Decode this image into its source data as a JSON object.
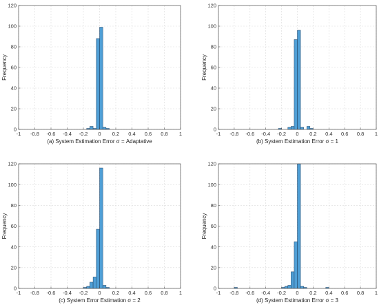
{
  "figure": {
    "bar_color": "#4f9fd6",
    "bar_edge_color": "#1f3f5f",
    "grid_color": "#d9d9d9",
    "axis_color": "#4d4d4d"
  },
  "chart_data": [
    {
      "type": "bar",
      "subtype": "histogram",
      "ylabel": "Frequency",
      "xlabel": "(a) System Estimation Error σ = Adaptative",
      "xlim": [
        -1,
        1
      ],
      "ylim": [
        0,
        120
      ],
      "grid": true,
      "bin_width": 0.04,
      "xticks": [
        "-1",
        "-0.8",
        "-0.6",
        "-0.4",
        "-0.2",
        "0",
        "0.2",
        "0.4",
        "0.6",
        "0.8",
        "1"
      ],
      "yticks": [
        "0",
        "20",
        "40",
        "60",
        "80",
        "100",
        "120"
      ],
      "bins": [
        {
          "x": -0.14,
          "value": 1
        },
        {
          "x": -0.1,
          "value": 3
        },
        {
          "x": -0.06,
          "value": 1
        },
        {
          "x": -0.02,
          "value": 88
        },
        {
          "x": 0.02,
          "value": 99
        },
        {
          "x": 0.06,
          "value": 2
        },
        {
          "x": 0.1,
          "value": 1
        }
      ]
    },
    {
      "type": "bar",
      "subtype": "histogram",
      "ylabel": "Frequency",
      "xlabel": "(b) System Estimation Error σ = 1",
      "xlim": [
        -1,
        1
      ],
      "ylim": [
        0,
        120
      ],
      "grid": true,
      "bin_width": 0.04,
      "xticks": [
        "-1",
        "-0.8",
        "-0.6",
        "-0.4",
        "-0.2",
        "0",
        "0.2",
        "0.4",
        "0.6",
        "0.8",
        "1"
      ],
      "yticks": [
        "0",
        "20",
        "40",
        "60",
        "80",
        "100",
        "120"
      ],
      "bins": [
        {
          "x": -0.22,
          "value": 1
        },
        {
          "x": -0.1,
          "value": 2
        },
        {
          "x": -0.06,
          "value": 3
        },
        {
          "x": -0.02,
          "value": 87
        },
        {
          "x": 0.02,
          "value": 96
        },
        {
          "x": 0.06,
          "value": 2
        },
        {
          "x": 0.14,
          "value": 3
        },
        {
          "x": 0.18,
          "value": 1
        }
      ]
    },
    {
      "type": "bar",
      "subtype": "histogram",
      "ylabel": "Frequency",
      "xlabel": "(c) System Error Estimation  σ = 2",
      "xlim": [
        -1,
        1
      ],
      "ylim": [
        0,
        120
      ],
      "grid": true,
      "bin_width": 0.04,
      "xticks": [
        "-1",
        "-0.8",
        "-0.6",
        "-0.4",
        "-0.2",
        "0",
        "0.2",
        "0.4",
        "0.6",
        "0.8",
        "1"
      ],
      "yticks": [
        "0",
        "20",
        "40",
        "60",
        "80",
        "100",
        "120"
      ],
      "bins": [
        {
          "x": -0.18,
          "value": 1
        },
        {
          "x": -0.14,
          "value": 2
        },
        {
          "x": -0.1,
          "value": 6
        },
        {
          "x": -0.06,
          "value": 11
        },
        {
          "x": -0.02,
          "value": 57
        },
        {
          "x": 0.02,
          "value": 116
        },
        {
          "x": 0.06,
          "value": 3
        },
        {
          "x": 0.1,
          "value": 1
        }
      ]
    },
    {
      "type": "bar",
      "subtype": "histogram",
      "ylabel": "Frequency",
      "xlabel": "(d) System Estimation Error σ = 3",
      "xlim": [
        -1,
        1
      ],
      "ylim": [
        0,
        120
      ],
      "grid": true,
      "bin_width": 0.04,
      "xticks": [
        "-1",
        "-0.8",
        "-0.6",
        "-0.4",
        "-0.2",
        "0",
        "0.2",
        "0.4",
        "0.6",
        "0.8",
        "1"
      ],
      "yticks": [
        "0",
        "20",
        "40",
        "60",
        "80",
        "100",
        "120"
      ],
      "bins": [
        {
          "x": -0.78,
          "value": 1
        },
        {
          "x": -0.18,
          "value": 1
        },
        {
          "x": -0.14,
          "value": 2
        },
        {
          "x": -0.1,
          "value": 3
        },
        {
          "x": -0.06,
          "value": 16
        },
        {
          "x": -0.02,
          "value": 45
        },
        {
          "x": 0.02,
          "value": 120
        },
        {
          "x": 0.06,
          "value": 2
        },
        {
          "x": 0.1,
          "value": 1
        },
        {
          "x": 0.38,
          "value": 1
        }
      ]
    }
  ]
}
